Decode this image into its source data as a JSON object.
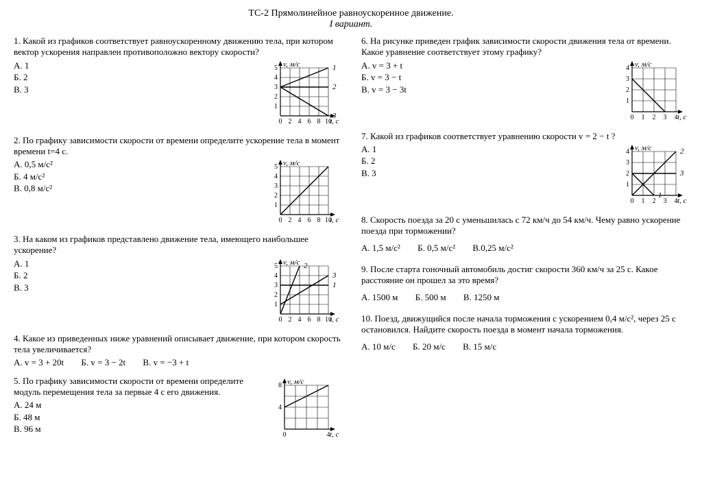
{
  "title_line1": "ТС-2 Прямолинейное равноускоренное движение.",
  "title_line2": "I вариант.",
  "q1": {
    "text": "1. Какой из графиков соответствует равноускоренному движению тела, при котором вектор ускорения направлен противоположно вектору скорости?",
    "a": "А. 1",
    "b": "Б. 2",
    "c": "В. 3",
    "chart": {
      "ylabel": "v, м/с",
      "xlabel": "t, с",
      "xticks": [
        0,
        2,
        4,
        6,
        8,
        10
      ],
      "yticks": [
        1,
        2,
        3,
        4,
        5
      ],
      "lines": [
        {
          "label": "1",
          "pts": [
            [
              0,
              3
            ],
            [
              10,
              5
            ]
          ]
        },
        {
          "label": "2",
          "pts": [
            [
              0,
              3
            ],
            [
              10,
              3
            ]
          ]
        },
        {
          "label": "3",
          "pts": [
            [
              0,
              3
            ],
            [
              10,
              0
            ]
          ]
        }
      ]
    }
  },
  "q2": {
    "text": "2. По графику зависимости скорости от времени определите ускорение тела в момент времени t=4 с.",
    "a": "А. 0,5 м/с²",
    "b": "Б. 4 м/с²",
    "c": "В. 0,8 м/с²",
    "chart": {
      "ylabel": "v, м/с",
      "xlabel": "t, с",
      "xticks": [
        0,
        2,
        4,
        6,
        8,
        10
      ],
      "yticks": [
        1,
        2,
        3,
        4,
        5
      ],
      "lines": [
        {
          "pts": [
            [
              0,
              0
            ],
            [
              10,
              5
            ]
          ]
        }
      ]
    }
  },
  "q3": {
    "text": "3. На каком из графиков представлено движение тела, имеющего наибольшее ускорение?",
    "a": "А. 1",
    "b": "Б. 2",
    "c": "В. 3",
    "chart": {
      "ylabel": "v, м/с",
      "xlabel": "t, с",
      "xticks": [
        0,
        2,
        4,
        6,
        8,
        10
      ],
      "yticks": [
        1,
        2,
        3,
        4,
        5
      ],
      "lines": [
        {
          "label": "1",
          "pts": [
            [
              0,
              3
            ],
            [
              10,
              3
            ]
          ]
        },
        {
          "label": "2",
          "pts": [
            [
              0,
              0
            ],
            [
              4,
              5
            ]
          ]
        },
        {
          "label": "3",
          "pts": [
            [
              0,
              1
            ],
            [
              10,
              4
            ]
          ]
        }
      ]
    }
  },
  "q4": {
    "text": "4. Какое из приведенных ниже уравнений описывает движение, при котором скорость тела увеличивается?",
    "a": "А.  v = 3 + 20t",
    "b": "Б.  v = 3 − 2t",
    "c": "В.  v = −3 + t"
  },
  "q5": {
    "text": "5. По графику зависимости скорости от времени определите модуль перемещения тела за первые 4 с его движения.",
    "a": "А. 24 м",
    "b": "Б. 48 м",
    "c": "В. 96 м",
    "chart": {
      "ylabel": "v, м/с",
      "xlabel": "t, с",
      "xticks": [
        0,
        4
      ],
      "yticks": [
        4,
        8
      ],
      "lines": [
        {
          "pts": [
            [
              0,
              4
            ],
            [
              4,
              8
            ]
          ]
        }
      ]
    }
  },
  "q6": {
    "text": "6. На рисунке приведен график зависимости скорости движения тела от времени. Какое уравнение соответствует этому графику?",
    "a": "А.  v = 3 + t",
    "b": "Б.  v = 3 − t",
    "c": "В.  v = 3 − 3t",
    "chart": {
      "ylabel": "v, м/с",
      "xlabel": "t, с",
      "xticks": [
        0,
        1,
        2,
        3,
        4
      ],
      "yticks": [
        1,
        2,
        3,
        4
      ],
      "lines": [
        {
          "pts": [
            [
              0,
              3
            ],
            [
              3,
              0
            ]
          ]
        }
      ]
    }
  },
  "q7": {
    "text": "7. Какой из графиков соответствует уравнению скорости  v = 2 − t ?",
    "a": "А. 1",
    "b": "Б. 2",
    "c": "В. 3",
    "chart": {
      "ylabel": "v, м/с",
      "xlabel": "t, с",
      "xticks": [
        0,
        1,
        2,
        3,
        4
      ],
      "yticks": [
        1,
        2,
        3,
        4
      ],
      "lines": [
        {
          "label": "1",
          "pts": [
            [
              0,
              2
            ],
            [
              2,
              0
            ]
          ]
        },
        {
          "label": "2",
          "pts": [
            [
              0,
              0
            ],
            [
              4,
              4
            ]
          ]
        },
        {
          "label": "3",
          "pts": [
            [
              0,
              2
            ],
            [
              4,
              2
            ]
          ]
        }
      ]
    }
  },
  "q8": {
    "text": "8. Скорость поезда за 20 с уменьшилась с 72 км/ч до 54 км/ч. Чему равно ускорение поезда при торможении?",
    "a": "А. 1,5 м/с²",
    "b": "Б. 0,5 м/с²",
    "c": "В.0,25 м/с²"
  },
  "q9": {
    "text": "9. После старта гоночный автомобиль достиг скорости 360 км/ч за 25 с. Какое расстояние он прошел за это время?",
    "a": "А. 1500 м",
    "b": "Б. 500 м",
    "c": "В. 1250 м"
  },
  "q10": {
    "text": "10. Поезд, движущийся после начала торможения с ускорением 0,4 м/с², через 25 с остановился. Найдите скорость поезда в момент начала торможения.",
    "a": "А. 10 м/с",
    "b": "Б. 20 м/с",
    "c": "В. 15 м/с"
  },
  "chart_style": {
    "stroke": "#000000",
    "grid_stroke": "#000000",
    "background": "#ffffff",
    "line_width": 1.4,
    "grid_width": 0.6
  }
}
